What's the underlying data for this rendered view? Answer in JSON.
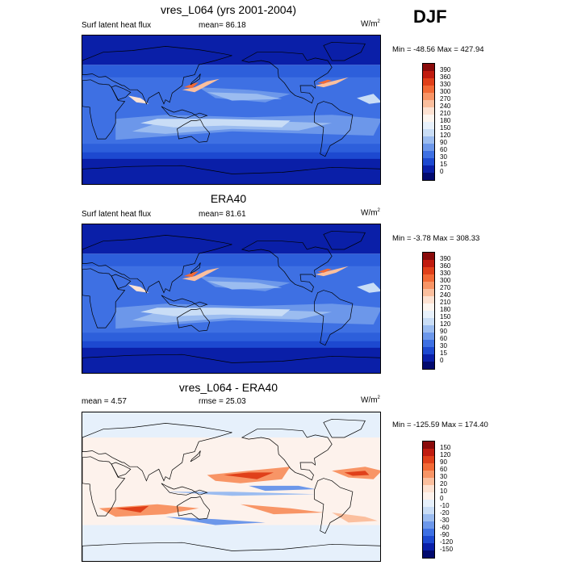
{
  "season": "DJF",
  "panels": [
    {
      "title": "vres_L064 (yrs 2001-2004)",
      "left_label": "Surf latent heat flux",
      "stat_text": "mean=  86.18",
      "units": "W/m",
      "units_sup": "2",
      "minmax": "Min = -48.56 Max = 427.94",
      "colorbar": {
        "labels": [
          "390",
          "360",
          "330",
          "300",
          "270",
          "240",
          "210",
          "180",
          "150",
          "120",
          "90",
          "60",
          "30",
          "15",
          "0"
        ],
        "colors": [
          "#8a0b0b",
          "#c01c10",
          "#e0401a",
          "#f26a36",
          "#f89566",
          "#fbbf9e",
          "#fde2d2",
          "#fdf6f0",
          "#e8f1fb",
          "#c9ddf6",
          "#9bbcf0",
          "#6c97ea",
          "#3e70e3",
          "#1d49d0",
          "#0a1fa8",
          "#020a6e"
        ]
      },
      "map_style": "flux"
    },
    {
      "title": "ERA40",
      "left_label": "Surf latent heat flux",
      "stat_text": "mean=  81.61",
      "units": "W/m",
      "units_sup": "2",
      "minmax": "Min =  -3.78 Max = 308.33",
      "colorbar": {
        "labels": [
          "390",
          "360",
          "330",
          "300",
          "270",
          "240",
          "210",
          "180",
          "150",
          "120",
          "90",
          "60",
          "30",
          "15",
          "0"
        ],
        "colors": [
          "#8a0b0b",
          "#c01c10",
          "#e0401a",
          "#f26a36",
          "#f89566",
          "#fbbf9e",
          "#fde2d2",
          "#fdf6f0",
          "#e8f1fb",
          "#c9ddf6",
          "#9bbcf0",
          "#6c97ea",
          "#3e70e3",
          "#1d49d0",
          "#0a1fa8",
          "#020a6e"
        ]
      },
      "map_style": "flux"
    },
    {
      "title": "vres_L064 - ERA40",
      "left_label": "mean =   4.57",
      "stat_text": "rmse =  25.03",
      "units": "W/m",
      "units_sup": "2",
      "minmax": "Min = -125.59 Max = 174.40",
      "colorbar": {
        "labels": [
          "150",
          "120",
          "90",
          "60",
          "30",
          "20",
          "10",
          "0",
          "-10",
          "-20",
          "-30",
          "-60",
          "-90",
          "-120",
          "-150"
        ],
        "colors": [
          "#8a0b0b",
          "#c01c10",
          "#e0401a",
          "#f26a36",
          "#f89566",
          "#fbbf9e",
          "#fde2d2",
          "#fdf2ec",
          "#e6f0fb",
          "#c9ddf6",
          "#9bbcf0",
          "#6c97ea",
          "#3e70e3",
          "#1d49d0",
          "#0a1fa8",
          "#020a6e"
        ]
      },
      "map_style": "diff"
    }
  ]
}
